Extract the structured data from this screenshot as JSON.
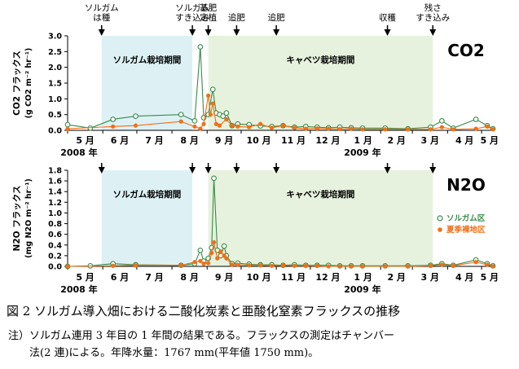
{
  "figure": {
    "caption": "図 2 ソルガム導入畑における二酸化炭素と亜酸化窒素フラックスの推移",
    "note_line1": "注）ソルガム連用 3 年目の 1 年間の結果である。フラックスの測定はチャンバー",
    "note_line2": "法(2 連)による。年降水量：1767 mm(平年値 1750 mm)。"
  },
  "colors": {
    "sorghum": "#3a8a4a",
    "fallow": "#f07018",
    "sorghum_period": "#ddf1f5",
    "cabbage_period": "#e6f2dd"
  },
  "chart_data": [
    {
      "type": "line",
      "title": "CO2",
      "ylabel_line1": "CO2 フラックス",
      "ylabel_line2": "(g CO2 m⁻² hr⁻¹)",
      "ylim": [
        0,
        3.0
      ],
      "yticks": [
        "0.0",
        "0.5",
        "1.0",
        "1.5",
        "2.0",
        "2.5",
        "3.0"
      ],
      "month_labels": [
        "5 月",
        "6 月",
        "7 月",
        "8 月",
        "9 月",
        "10 月",
        "11 月",
        "12 月",
        "1 月",
        "2 月",
        "3 月",
        "4 月",
        "5 月"
      ],
      "year_labels": [
        "2008 年",
        "2009 年"
      ],
      "periods": [
        {
          "label": "ソルガム栽培期間",
          "start": 30,
          "end": 110
        },
        {
          "label": "キャベツ栽培期間",
          "start": 124,
          "end": 322
        }
      ],
      "events": [
        {
          "label_line1": "ソルガム",
          "label_line2": "は種",
          "day": 30
        },
        {
          "label_line1": "ソルガム",
          "label_line2": "すき込み",
          "day": 110
        },
        {
          "label_line1": "基肥",
          "label_line2": "定植",
          "day": 124
        },
        {
          "label_line1": "追肥",
          "label_line2": "",
          "day": 149
        },
        {
          "label_line1": "追肥",
          "label_line2": "",
          "day": 184
        },
        {
          "label_line1": "収穫",
          "label_line2": "",
          "day": 282
        },
        {
          "label_line1": "残さ",
          "label_line2": "すき込み",
          "day": 322
        }
      ],
      "series": [
        {
          "name": "ソルガム区",
          "marker": "open",
          "x": [
            0,
            20,
            40,
            60,
            100,
            112,
            117,
            120,
            124,
            128,
            131,
            134,
            137,
            140,
            145,
            150,
            160,
            170,
            180,
            190,
            200,
            210,
            220,
            230,
            240,
            250,
            260,
            280,
            300,
            320,
            330,
            340,
            360,
            370,
            375
          ],
          "y": [
            0.18,
            0.07,
            0.35,
            0.45,
            0.5,
            0.3,
            2.65,
            0.4,
            0.5,
            1.3,
            0.55,
            0.5,
            0.45,
            0.55,
            0.15,
            0.2,
            0.18,
            0.14,
            0.12,
            0.15,
            0.1,
            0.12,
            0.1,
            0.08,
            0.1,
            0.08,
            0.07,
            0.07,
            0.05,
            0.1,
            0.3,
            0.07,
            0.35,
            0.15,
            0.05
          ]
        },
        {
          "name": "夏季裸地区",
          "marker": "filled",
          "x": [
            0,
            40,
            60,
            100,
            112,
            117,
            120,
            124,
            126,
            128,
            131,
            134,
            140,
            145,
            150,
            160,
            170,
            180,
            190,
            200,
            210,
            220,
            230,
            240,
            250,
            260,
            280,
            300,
            320,
            330,
            340,
            360,
            370,
            375
          ],
          "y": [
            0.05,
            0.12,
            0.15,
            0.28,
            0.12,
            0.05,
            0.2,
            1.1,
            0.5,
            0.85,
            0.2,
            0.15,
            0.35,
            0.15,
            0.12,
            0.1,
            0.2,
            0.08,
            0.15,
            0.08,
            0.05,
            0.06,
            0.05,
            0.04,
            0.05,
            0.03,
            0.03,
            0.03,
            0.03,
            0.1,
            0.03,
            0.05,
            0.12,
            0.03
          ]
        }
      ]
    },
    {
      "type": "line",
      "title": "N2O",
      "ylabel_line1": "N2O フラックス",
      "ylabel_line2": "(mg N2O m⁻² hr⁻¹)",
      "ylim": [
        0,
        1.8
      ],
      "yticks": [
        "0.0",
        "0.2",
        "0.4",
        "0.6",
        "0.8",
        "1.0",
        "1.2",
        "1.4",
        "1.6",
        "1.8"
      ],
      "month_labels": [
        "5 月",
        "6 月",
        "7 月",
        "8 月",
        "9 月",
        "10 月",
        "11 月",
        "12 月",
        "1 月",
        "2 月",
        "3 月",
        "4 月",
        "5 月"
      ],
      "year_labels": [
        "2008 年",
        "2009 年"
      ],
      "legend": "right",
      "periods": [
        {
          "label": "ソルガム栽培期間",
          "start": 30,
          "end": 110
        },
        {
          "label": "キャベツ栽培期間",
          "start": 124,
          "end": 322
        }
      ],
      "events": [
        {
          "day": 30
        },
        {
          "day": 110
        },
        {
          "day": 124
        },
        {
          "day": 149
        },
        {
          "day": 184
        },
        {
          "day": 282
        },
        {
          "day": 322
        }
      ],
      "series": [
        {
          "name": "ソルガム区",
          "marker": "open",
          "x": [
            0,
            20,
            40,
            60,
            100,
            112,
            117,
            120,
            124,
            127,
            129,
            132,
            135,
            138,
            140,
            145,
            150,
            160,
            170,
            180,
            190,
            200,
            210,
            220,
            230,
            240,
            250,
            260,
            280,
            300,
            320,
            330,
            340,
            360,
            370,
            375
          ],
          "y": [
            0.0,
            0.01,
            0.05,
            0.03,
            0.02,
            0.05,
            0.3,
            0.1,
            0.15,
            0.35,
            1.65,
            0.3,
            0.2,
            0.38,
            0.2,
            0.05,
            0.06,
            0.04,
            0.03,
            0.03,
            0.02,
            0.03,
            0.02,
            0.02,
            0.02,
            0.01,
            0.01,
            0.01,
            0.01,
            0.01,
            0.02,
            0.05,
            0.02,
            0.12,
            0.05,
            0.01
          ]
        },
        {
          "name": "夏季裸地区",
          "marker": "filled",
          "x": [
            0,
            40,
            60,
            100,
            112,
            117,
            120,
            124,
            127,
            129,
            132,
            135,
            138,
            140,
            145,
            150,
            160,
            170,
            180,
            190,
            200,
            210,
            220,
            230,
            240,
            250,
            260,
            280,
            300,
            320,
            330,
            340,
            360,
            370,
            375
          ],
          "y": [
            0.0,
            0.01,
            0.02,
            0.02,
            0.08,
            0.1,
            0.05,
            0.06,
            0.25,
            0.45,
            0.15,
            0.28,
            0.2,
            0.15,
            0.03,
            0.03,
            0.02,
            0.02,
            0.01,
            0.02,
            0.01,
            0.01,
            0.01,
            0.0,
            0.0,
            0.0,
            0.0,
            0.0,
            0.0,
            0.01,
            0.03,
            0.01,
            0.08,
            0.03,
            0.0
          ]
        }
      ]
    }
  ]
}
